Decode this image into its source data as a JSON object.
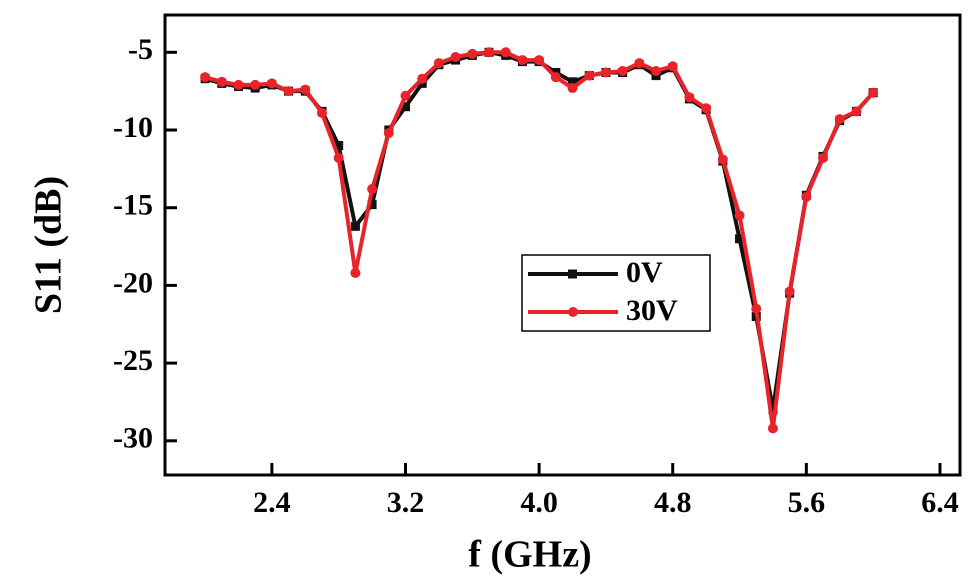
{
  "chart_data": {
    "type": "line",
    "x_label": "f (GHz)",
    "y_label": "S11 (dB)",
    "x": [
      2.0,
      2.1,
      2.2,
      2.3,
      2.4,
      2.5,
      2.6,
      2.7,
      2.8,
      2.9,
      3.0,
      3.1,
      3.2,
      3.3,
      3.4,
      3.5,
      3.6,
      3.7,
      3.8,
      3.9,
      4.0,
      4.1,
      4.2,
      4.3,
      4.4,
      4.5,
      4.6,
      4.7,
      4.8,
      4.9,
      5.0,
      5.1,
      5.2,
      5.3,
      5.4,
      5.5,
      5.6,
      5.7,
      5.8,
      5.9,
      6.0
    ],
    "series": [
      {
        "name": "0V",
        "color": "#111111",
        "marker": "square",
        "values": [
          -6.7,
          -7.0,
          -7.2,
          -7.3,
          -7.1,
          -7.5,
          -7.5,
          -8.8,
          -11.0,
          -16.2,
          -14.8,
          -10.0,
          -8.5,
          -7.0,
          -5.8,
          -5.5,
          -5.2,
          -5.0,
          -5.2,
          -5.6,
          -5.6,
          -6.3,
          -6.9,
          -6.5,
          -6.3,
          -6.3,
          -5.8,
          -6.5,
          -6.0,
          -8.0,
          -8.7,
          -12.0,
          -17.0,
          -22.0,
          -28.0,
          -20.5,
          -14.2,
          -11.7,
          -9.4,
          -8.8,
          -7.6
        ]
      },
      {
        "name": "30V",
        "color": "#e8232a",
        "marker": "circle",
        "values": [
          -6.6,
          -6.9,
          -7.1,
          -7.1,
          -7.0,
          -7.5,
          -7.4,
          -8.9,
          -11.8,
          -19.2,
          -13.8,
          -10.2,
          -7.8,
          -6.7,
          -5.7,
          -5.3,
          -5.1,
          -5.0,
          -5.0,
          -5.5,
          -5.5,
          -6.6,
          -7.3,
          -6.5,
          -6.3,
          -6.2,
          -5.7,
          -6.2,
          -5.9,
          -7.9,
          -8.6,
          -11.9,
          -15.5,
          -21.5,
          -29.2,
          -20.4,
          -14.3,
          -11.8,
          -9.3,
          -8.8,
          -7.6
        ]
      }
    ],
    "xlim": [
      1.76,
      6.52
    ],
    "xticks": [
      2.4,
      3.2,
      {
        "value": 4.0,
        "label": "4.0"
      },
      4.8,
      5.6,
      6.4
    ],
    "ylim": [
      -32.2,
      -2.6
    ],
    "yticks": [
      -30,
      -25,
      -20,
      -15,
      -10,
      -5
    ],
    "legend": "center"
  }
}
